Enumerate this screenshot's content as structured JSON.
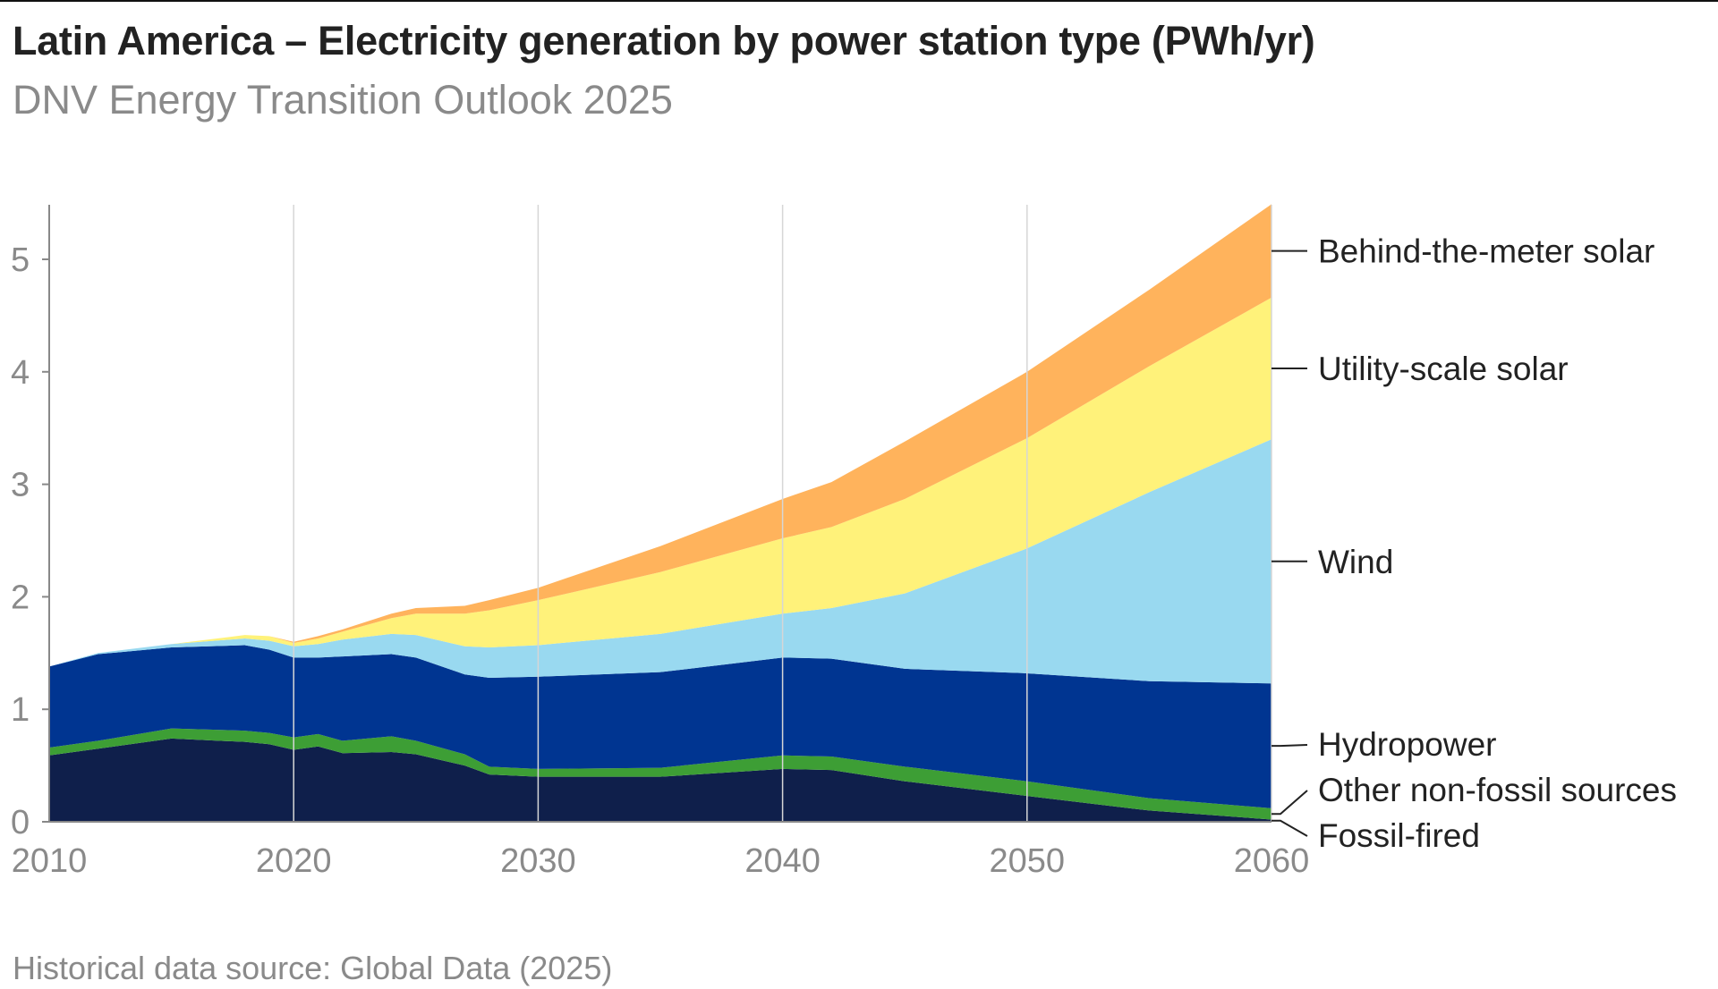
{
  "header": {
    "title": "Latin America – Electricity generation by power station type (PWh/yr)",
    "subtitle": "DNV Energy Transition Outlook 2025"
  },
  "footer": {
    "source": "Historical data source: Global Data (2025)"
  },
  "chart_data": {
    "type": "area",
    "stacked": true,
    "title": "Latin America – Electricity generation by power station type (PWh/yr)",
    "xlabel": "",
    "ylabel": "PWh/yr",
    "xlim": [
      2010,
      2060
    ],
    "ylim": [
      0,
      5.5
    ],
    "x_ticks": [
      "2010",
      "2020",
      "2030",
      "2040",
      "2050",
      "2060"
    ],
    "y_ticks": [
      "0",
      "1",
      "2",
      "3",
      "4",
      "5"
    ],
    "grid": "vertical",
    "legend": "right, direct labels",
    "x": [
      2010,
      2012,
      2015,
      2018,
      2019,
      2020,
      2021,
      2022,
      2024,
      2025,
      2027,
      2028,
      2030,
      2035,
      2040,
      2042,
      2045,
      2050,
      2055,
      2060
    ],
    "series": [
      {
        "name": "Fossil-fired",
        "color": "#0f1f4b",
        "values": [
          0.59,
          0.65,
          0.74,
          0.71,
          0.69,
          0.64,
          0.67,
          0.61,
          0.62,
          0.6,
          0.5,
          0.42,
          0.4,
          0.4,
          0.47,
          0.46,
          0.36,
          0.23,
          0.1,
          0.02
        ]
      },
      {
        "name": "Other non-fossil sources",
        "color": "#3d9e35",
        "values": [
          0.07,
          0.07,
          0.09,
          0.1,
          0.1,
          0.11,
          0.11,
          0.11,
          0.14,
          0.12,
          0.1,
          0.07,
          0.07,
          0.08,
          0.12,
          0.12,
          0.13,
          0.13,
          0.11,
          0.1
        ]
      },
      {
        "name": "Hydropower",
        "color": "#003591",
        "values": [
          0.72,
          0.77,
          0.72,
          0.76,
          0.74,
          0.71,
          0.68,
          0.75,
          0.73,
          0.74,
          0.71,
          0.79,
          0.82,
          0.85,
          0.87,
          0.87,
          0.87,
          0.96,
          1.04,
          1.11
        ]
      },
      {
        "name": "Wind",
        "color": "#99d9f0",
        "values": [
          0,
          0.01,
          0.03,
          0.06,
          0.08,
          0.1,
          0.12,
          0.15,
          0.18,
          0.2,
          0.25,
          0.27,
          0.28,
          0.34,
          0.39,
          0.45,
          0.67,
          1.11,
          1.68,
          2.17
        ]
      },
      {
        "name": "Utility-scale solar",
        "color": "#fff27a",
        "values": [
          0,
          0,
          0,
          0.03,
          0.04,
          0.03,
          0.05,
          0.07,
          0.14,
          0.19,
          0.29,
          0.33,
          0.4,
          0.55,
          0.67,
          0.72,
          0.84,
          0.98,
          1.12,
          1.26
        ]
      },
      {
        "name": "Behind-the-meter solar",
        "color": "#ffb35c",
        "values": [
          0,
          0,
          0,
          0,
          0,
          0.01,
          0.02,
          0.02,
          0.04,
          0.05,
          0.07,
          0.09,
          0.11,
          0.23,
          0.35,
          0.4,
          0.51,
          0.59,
          0.68,
          0.83
        ]
      }
    ]
  }
}
